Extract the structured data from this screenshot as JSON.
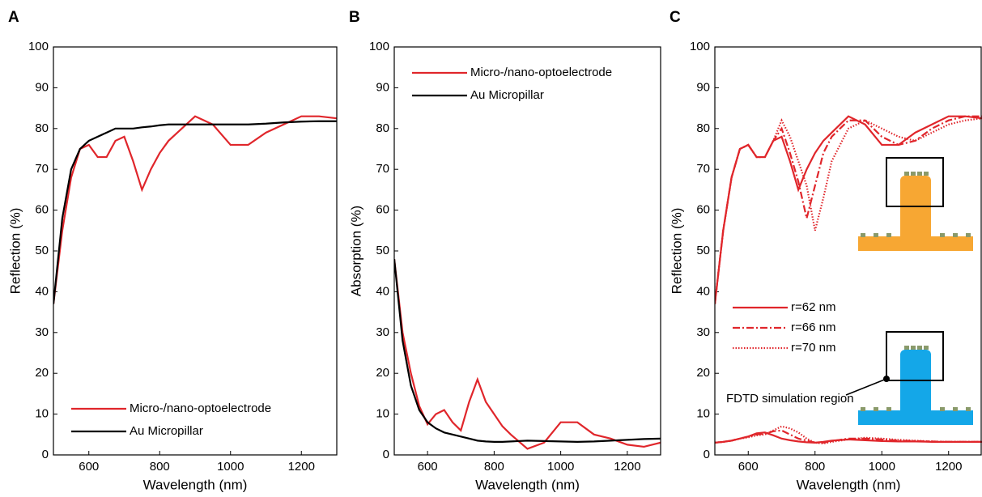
{
  "chart_data": [
    {
      "type": "line",
      "title": "A",
      "xlabel": "Wavelength (nm)",
      "ylabel": "Reflection (%)",
      "x": [
        500,
        525,
        550,
        575,
        600,
        625,
        650,
        675,
        700,
        725,
        750,
        775,
        800,
        825,
        850,
        900,
        950,
        1000,
        1050,
        1100,
        1150,
        1200,
        1250,
        1300
      ],
      "xlim": [
        500,
        1300
      ],
      "ylim": [
        0,
        100
      ],
      "xticks": [
        600,
        800,
        1000,
        1200
      ],
      "yticks": [
        0,
        10,
        20,
        30,
        40,
        50,
        60,
        70,
        80,
        90,
        100
      ],
      "legend": "lower left",
      "series": [
        {
          "name": "Micro-/nano-optoelectrode",
          "color": "#e0262b",
          "style": "solid",
          "values": [
            37,
            55,
            68,
            75,
            76,
            73,
            73,
            77,
            78,
            72,
            65,
            70,
            74,
            77,
            79,
            83,
            81,
            76,
            76,
            79,
            81,
            83,
            83,
            82.5
          ]
        },
        {
          "name": "Au Micropillar",
          "color": "#000000",
          "style": "solid",
          "values": [
            37,
            58,
            70,
            75,
            77,
            78,
            79,
            80,
            80,
            80,
            80.3,
            80.5,
            80.8,
            81,
            81,
            81,
            81,
            81,
            81,
            81.2,
            81.5,
            81.7,
            81.8,
            81.8
          ]
        }
      ]
    },
    {
      "type": "line",
      "title": "B",
      "xlabel": "Wavelength (nm)",
      "ylabel": "Absorption (%)",
      "x": [
        500,
        525,
        550,
        575,
        600,
        625,
        650,
        675,
        700,
        725,
        750,
        775,
        800,
        825,
        850,
        900,
        950,
        1000,
        1050,
        1100,
        1150,
        1200,
        1250,
        1300
      ],
      "xlim": [
        500,
        1300
      ],
      "ylim": [
        0,
        100
      ],
      "xticks": [
        600,
        800,
        1000,
        1200
      ],
      "yticks": [
        0,
        10,
        20,
        30,
        40,
        50,
        60,
        70,
        80,
        90,
        100
      ],
      "legend": "upper left",
      "series": [
        {
          "name": "Micro-/nano-optoelectrode",
          "color": "#e0262b",
          "style": "solid",
          "values": [
            48,
            30,
            20,
            12,
            7.5,
            10,
            11,
            8,
            6,
            13,
            18.5,
            13,
            10,
            7,
            5,
            1.5,
            3,
            8,
            8,
            5,
            4,
            2.5,
            2,
            3
          ]
        },
        {
          "name": "Au Micropillar",
          "color": "#000000",
          "style": "solid",
          "values": [
            48,
            28,
            17,
            11,
            8,
            6.5,
            5.5,
            5,
            4.5,
            4,
            3.5,
            3.3,
            3.2,
            3.2,
            3.3,
            3.5,
            3.4,
            3.3,
            3.2,
            3.3,
            3.5,
            3.7,
            3.9,
            4
          ]
        }
      ]
    },
    {
      "type": "line",
      "title": "C",
      "xlabel": "Wavelength (nm)",
      "ylabel": "Reflection (%)",
      "x": [
        500,
        525,
        550,
        575,
        600,
        625,
        650,
        675,
        700,
        725,
        750,
        775,
        800,
        825,
        850,
        900,
        950,
        1000,
        1050,
        1100,
        1150,
        1200,
        1250,
        1300
      ],
      "xlim": [
        500,
        1300
      ],
      "ylim": [
        0,
        100
      ],
      "xticks": [
        600,
        800,
        1000,
        1200
      ],
      "yticks": [
        0,
        10,
        20,
        30,
        40,
        50,
        60,
        70,
        80,
        90,
        100
      ],
      "legend": "center left",
      "annotation": "FDTD simulation region",
      "series": [
        {
          "name": "r=62 nm",
          "color": "#e0262b",
          "style": "solid",
          "values": [
            37,
            55,
            68,
            75,
            76,
            73,
            73,
            77,
            78,
            72,
            65,
            70,
            74,
            77,
            79,
            83,
            81,
            76,
            76,
            79,
            81,
            83,
            83,
            82.5
          ],
          "lower_values": [
            3,
            3.2,
            3.5,
            4,
            4.5,
            5.3,
            5.5,
            4.8,
            4,
            3.6,
            3.3,
            3.1,
            3,
            3.2,
            3.5,
            3.8,
            3.6,
            3.4,
            3.3,
            3.3,
            3.2,
            3.2,
            3.2,
            3.2
          ]
        },
        {
          "name": "r=66 nm",
          "color": "#e0262b",
          "style": "dashdot",
          "values": [
            37,
            55,
            68,
            75,
            76,
            73,
            73,
            77,
            80,
            74,
            67,
            58,
            66,
            74,
            78,
            82,
            82,
            78,
            76,
            77,
            80,
            82,
            83,
            83
          ],
          "lower_values": [
            3,
            3.2,
            3.5,
            4,
            4.5,
            5,
            5.2,
            5.8,
            6,
            5,
            4,
            3.5,
            3,
            3,
            3.4,
            4,
            4,
            3.8,
            3.5,
            3.4,
            3.3,
            3.2,
            3.2,
            3.2
          ]
        },
        {
          "name": "r=70 nm",
          "color": "#e0262b",
          "style": "dotted",
          "values": [
            37,
            55,
            68,
            75,
            76,
            73,
            73,
            77,
            82,
            78,
            72,
            66,
            55,
            63,
            72,
            80,
            82,
            80,
            78,
            77,
            79,
            81,
            82,
            82.5
          ],
          "lower_values": [
            3,
            3.2,
            3.5,
            4,
            4.3,
            4.8,
            5,
            6,
            7,
            6.5,
            5.5,
            4,
            3,
            2.8,
            3.2,
            3.8,
            4.2,
            4,
            3.7,
            3.5,
            3.3,
            3.2,
            3.2,
            3.2
          ]
        }
      ]
    }
  ]
}
